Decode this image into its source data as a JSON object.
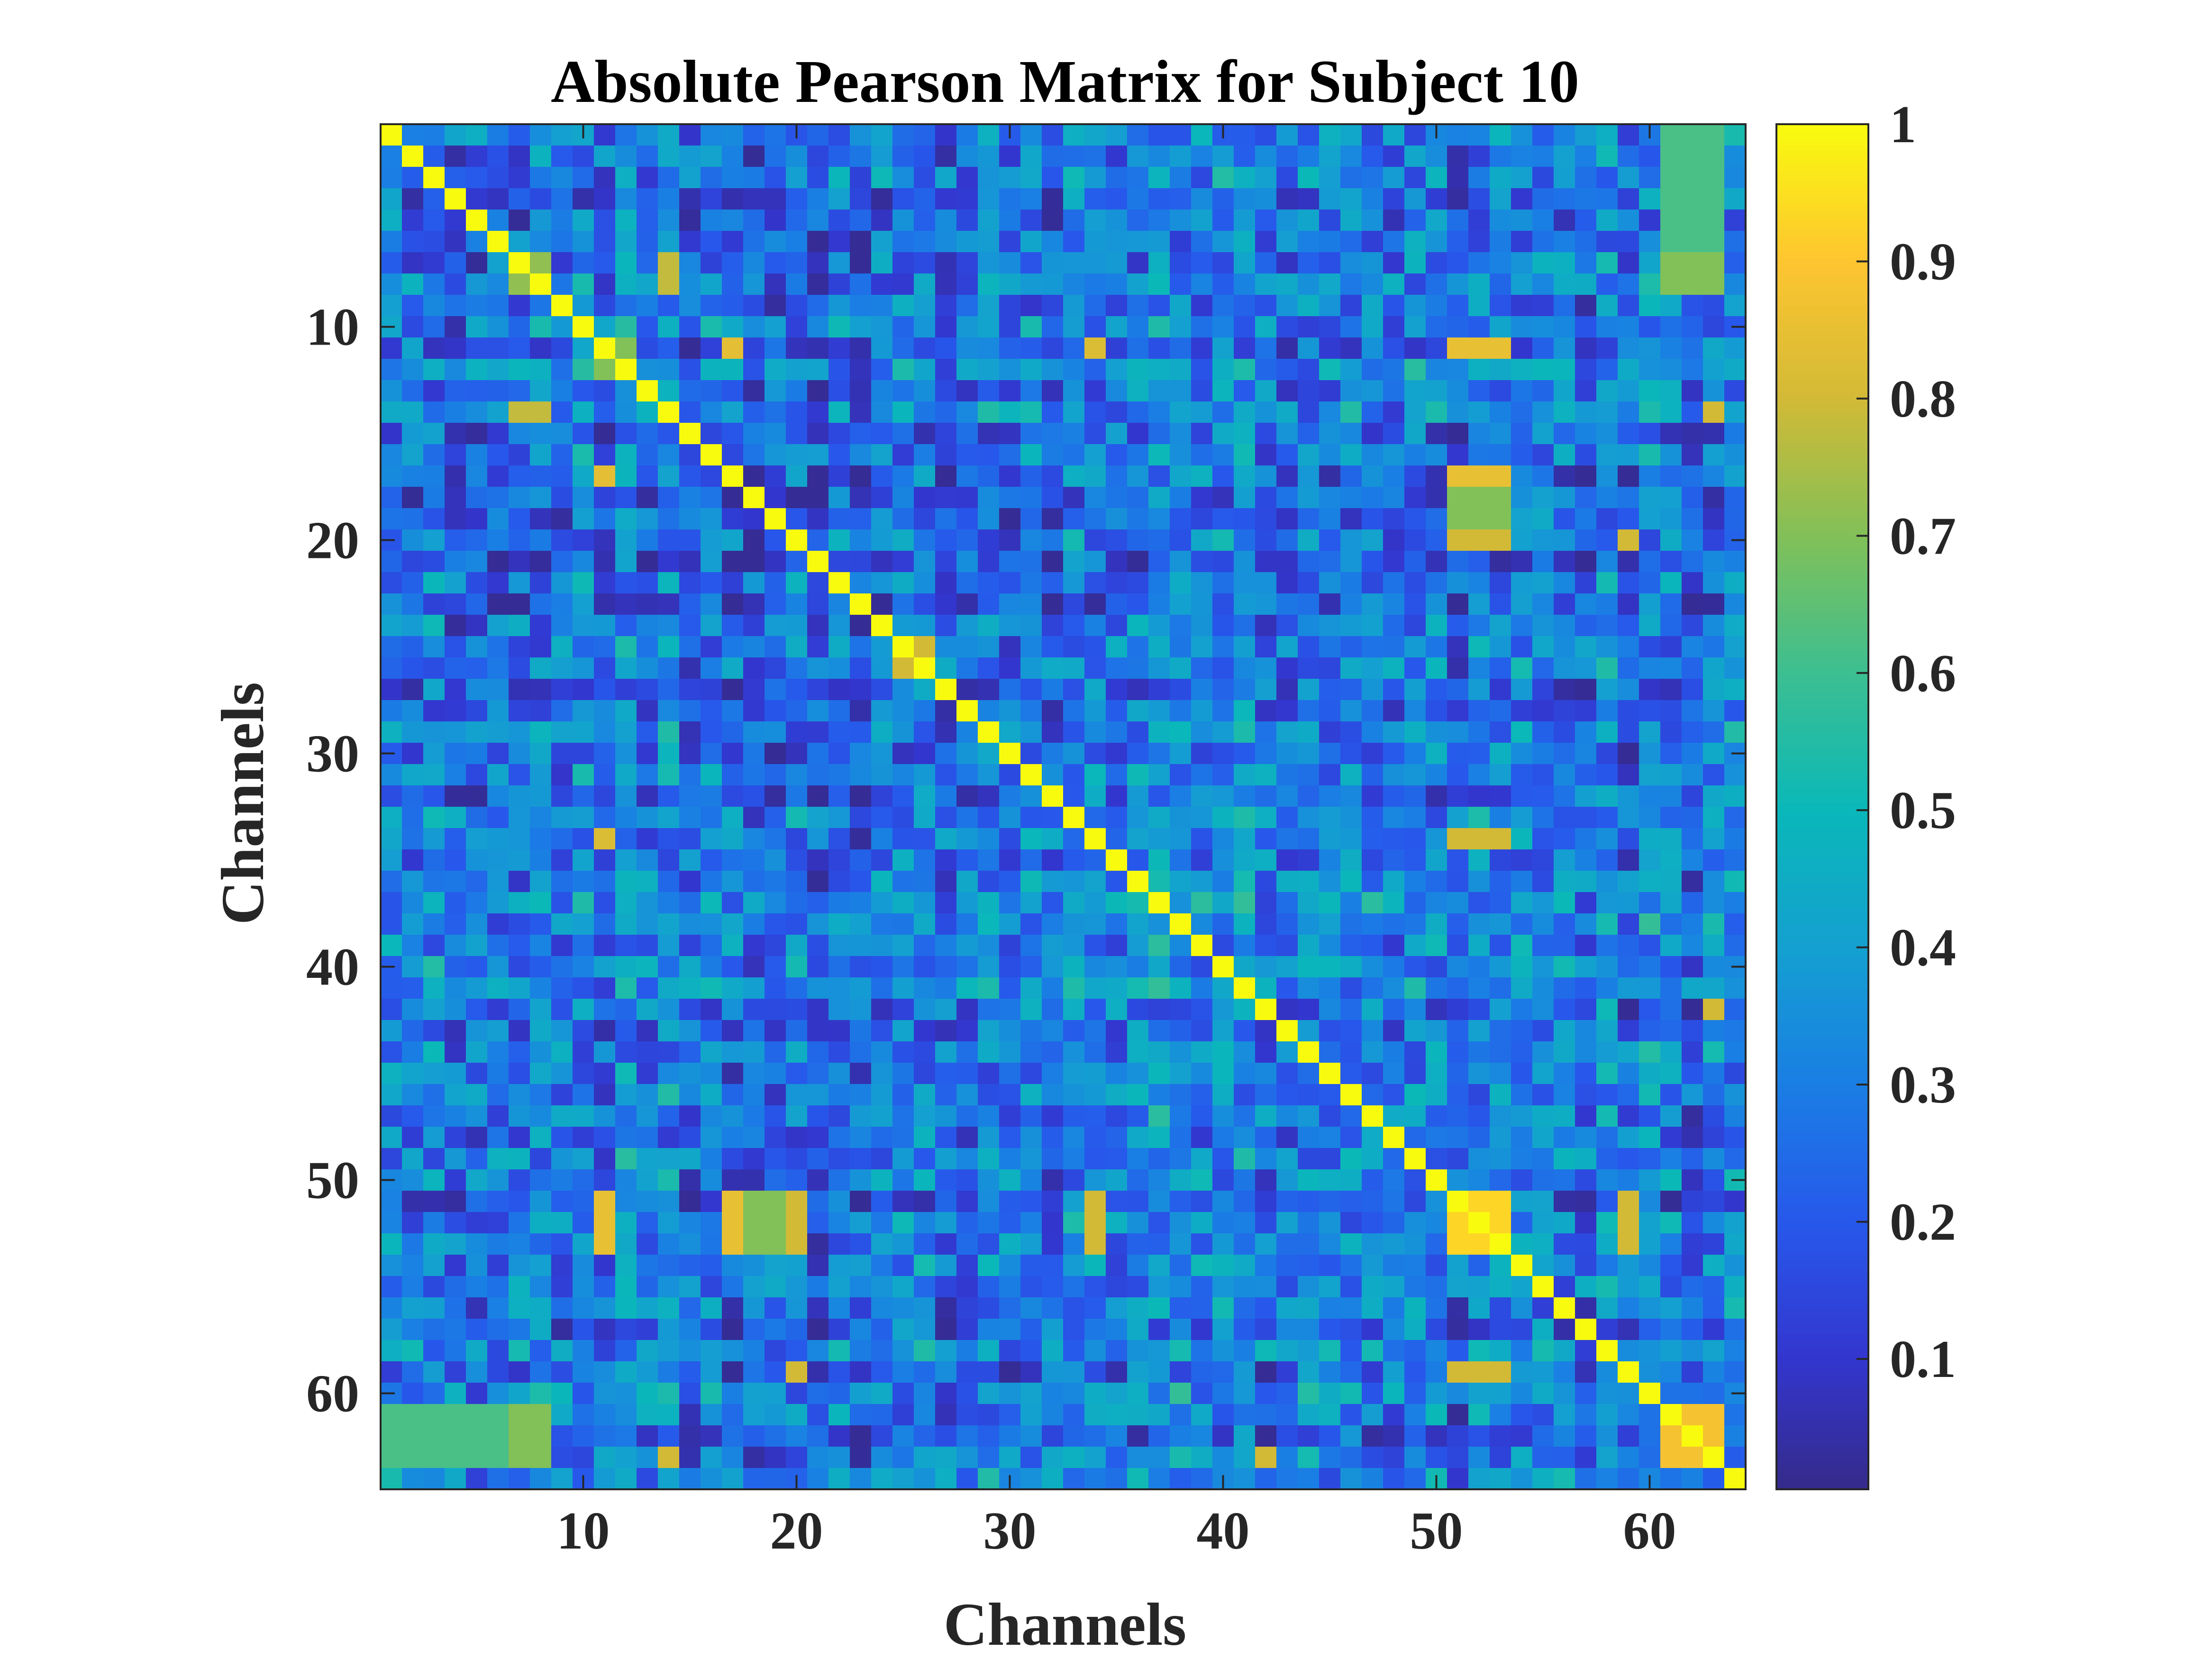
{
  "chart_data": {
    "type": "heatmap",
    "title": "Absolute Pearson Matrix for Subject 10",
    "xlabel": "Channels",
    "ylabel": "Channels",
    "n": 64,
    "xlim": [
      0.5,
      64.5
    ],
    "ylim": [
      0.5,
      64.5
    ],
    "y_direction": "reverse",
    "x_ticks": [
      10,
      20,
      30,
      40,
      50,
      60
    ],
    "y_ticks": [
      10,
      20,
      30,
      40,
      50,
      60
    ],
    "x_tick_labels": [
      "10",
      "20",
      "30",
      "40",
      "50",
      "60"
    ],
    "y_tick_labels": [
      "10",
      "20",
      "30",
      "40",
      "50",
      "60"
    ],
    "colormap": "parula",
    "clim": [
      0,
      1
    ],
    "colorbar": {
      "ticks": [
        0.1,
        0.2,
        0.3,
        0.4,
        0.5,
        0.6,
        0.7,
        0.8,
        0.9,
        1
      ],
      "tick_labels": [
        "0.1",
        "0.2",
        "0.3",
        "0.4",
        "0.5",
        "0.6",
        "0.7",
        "0.8",
        "0.9",
        "1"
      ]
    },
    "diagonal_value": 1,
    "typical_offdiagonal_range": [
      0.05,
      0.45
    ],
    "blocks": [
      {
        "channels_a": [
          1,
          8
        ],
        "channels_b": [
          61,
          63
        ],
        "value": 0.62
      },
      {
        "channels_a": [
          7,
          8
        ],
        "channels_b": [
          7,
          8
        ],
        "value": 0.72
      },
      {
        "channels_a": [
          7,
          8
        ],
        "channels_b": [
          62,
          63
        ],
        "value": 0.72
      },
      {
        "channels_a": [
          7,
          7
        ],
        "channels_b": [
          14,
          14
        ],
        "value": 0.78
      },
      {
        "channels_a": [
          11,
          11
        ],
        "channels_b": [
          17,
          17
        ],
        "value": 0.84
      },
      {
        "channels_a": [
          11,
          11
        ],
        "channels_b": [
          34,
          34
        ],
        "value": 0.82
      },
      {
        "channels_a": [
          11,
          11
        ],
        "channels_b": [
          51,
          53
        ],
        "value": 0.88
      },
      {
        "channels_a": [
          11,
          12
        ],
        "channels_b": [
          11,
          12
        ],
        "value": 0.7
      },
      {
        "channels_a": [
          14,
          14
        ],
        "channels_b": [
          8,
          8
        ],
        "value": 0.78
      },
      {
        "channels_a": [
          14,
          14
        ],
        "channels_b": [
          63,
          63
        ],
        "value": 0.8
      },
      {
        "channels_a": [
          17,
          17
        ],
        "channels_b": [
          51,
          53
        ],
        "value": 0.88
      },
      {
        "channels_a": [
          17,
          20
        ],
        "channels_b": [
          51,
          53
        ],
        "value": 0.7
      },
      {
        "channels_a": [
          20,
          20
        ],
        "channels_b": [
          51,
          53
        ],
        "value": 0.8
      },
      {
        "channels_a": [
          20,
          20
        ],
        "channels_b": [
          59,
          59
        ],
        "value": 0.8
      },
      {
        "channels_a": [
          25,
          26
        ],
        "channels_b": [
          25,
          26
        ],
        "value": 0.8
      },
      {
        "channels_a": [
          34,
          34
        ],
        "channels_b": [
          51,
          53
        ],
        "value": 0.8
      },
      {
        "channels_a": [
          42,
          42
        ],
        "channels_b": [
          63,
          63
        ],
        "value": 0.8
      },
      {
        "channels_a": [
          51,
          53
        ],
        "channels_b": [
          51,
          53
        ],
        "value": 0.93
      },
      {
        "channels_a": [
          51,
          53
        ],
        "channels_b": [
          11,
          11
        ],
        "value": 0.85
      },
      {
        "channels_a": [
          51,
          53
        ],
        "channels_b": [
          17,
          17
        ],
        "value": 0.85
      },
      {
        "channels_a": [
          51,
          53
        ],
        "channels_b": [
          20,
          20
        ],
        "value": 0.8
      },
      {
        "channels_a": [
          51,
          53
        ],
        "channels_b": [
          34,
          34
        ],
        "value": 0.8
      },
      {
        "channels_a": [
          51,
          53
        ],
        "channels_b": [
          59,
          59
        ],
        "value": 0.8
      },
      {
        "channels_a": [
          59,
          59
        ],
        "channels_b": [
          51,
          53
        ],
        "value": 0.8
      },
      {
        "channels_a": [
          61,
          63
        ],
        "channels_b": [
          61,
          63
        ],
        "value": 0.88
      },
      {
        "channels_a": [
          61,
          63
        ],
        "channels_b": [
          7,
          8
        ],
        "value": 0.7
      },
      {
        "channels_a": [
          63,
          63
        ],
        "channels_b": [
          42,
          42
        ],
        "value": 0.8
      }
    ]
  }
}
